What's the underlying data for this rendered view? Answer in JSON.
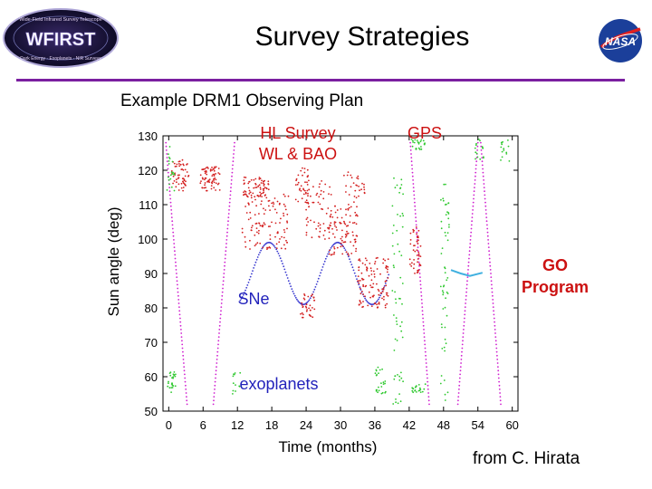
{
  "slide": {
    "title": "Survey Strategies",
    "subtitle": "Example DRM1 Observing Plan",
    "credit": "from C. Hirata",
    "logo_left_text": "WFIRST",
    "logo_left_ring": "Wide-Field Infrared Survey Telescope",
    "logo_left_footer": "Dark Energy · Exoplanets · NIR Surveys",
    "logo_right_text": "NASA"
  },
  "colors": {
    "rule": "#7a1fa0",
    "hl_survey": "#d42020",
    "sne": "#3a3ad0",
    "gps": "#2ec82e",
    "exoplanets": "#d020d0",
    "go_program": "#40b0e0",
    "red_label": "#cc1111",
    "sne_label": "#2222bb",
    "gps_label": "#cc1111",
    "exo_label": "#2222bb",
    "go_label": "#cc1111"
  },
  "chart_data": {
    "type": "scatter",
    "title": "",
    "xlabel": "Time (months)",
    "ylabel": "Sun angle (deg)",
    "xlim": [
      -1,
      61
    ],
    "ylim": [
      50,
      130
    ],
    "xticks": [
      0,
      6,
      12,
      18,
      24,
      30,
      36,
      42,
      48,
      54,
      60
    ],
    "yticks": [
      50,
      60,
      70,
      80,
      90,
      100,
      110,
      120,
      130
    ],
    "annotations": {
      "hl_survey": "HL Survey\nWL & BAO",
      "gps": "GPS",
      "go_program": "GO\nProgram",
      "sne": "SNe",
      "exoplanets": "exoplanets"
    },
    "series": [
      {
        "name": "SNe",
        "style": "sinusoid",
        "x_start": 12.5,
        "x_end": 38.5,
        "center": 90,
        "amplitude": 9,
        "period_months": 12,
        "peak_month": 17.5
      },
      {
        "name": "exoplanets",
        "style": "sawtooth",
        "segments": [
          [
            [
              -0.5,
              128
            ],
            [
              3.2,
              52
            ]
          ],
          [
            [
              7.8,
              52
            ],
            [
              11.5,
              128
            ]
          ],
          [
            [
              42.2,
              128
            ],
            [
              45.5,
              52
            ]
          ],
          [
            [
              50.5,
              52
            ],
            [
              54.0,
              128
            ]
          ],
          [
            [
              54.5,
              128
            ],
            [
              58.0,
              52
            ]
          ]
        ]
      },
      {
        "name": "GO Program",
        "style": "line",
        "points": [
          [
            49.3,
            91
          ],
          [
            51,
            90
          ],
          [
            52.6,
            89.3
          ],
          [
            54.8,
            90.2
          ]
        ]
      },
      {
        "name": "HL Survey",
        "style": "clusters",
        "clusters": [
          {
            "x": [
              0.5,
              3.5
            ],
            "y": [
              114,
              123
            ],
            "n": 55
          },
          {
            "x": [
              5.5,
              9.0
            ],
            "y": [
              114,
              121
            ],
            "n": 70
          },
          {
            "x": [
              13.0,
              17.5
            ],
            "y": [
              112,
              118
            ],
            "n": 70
          },
          {
            "x": [
              12.8,
              21.0
            ],
            "y": [
              97,
              113
            ],
            "n": 110
          },
          {
            "x": [
              22.0,
              24.5
            ],
            "y": [
              110,
              121
            ],
            "n": 35
          },
          {
            "x": [
              24.0,
              28.5
            ],
            "y": [
              100,
              118
            ],
            "n": 60
          },
          {
            "x": [
              28.0,
              33.0
            ],
            "y": [
              95,
              110
            ],
            "n": 90
          },
          {
            "x": [
              30.5,
              34.5
            ],
            "y": [
              110,
              120
            ],
            "n": 30
          },
          {
            "x": [
              33.0,
              38.5
            ],
            "y": [
              80,
              95
            ],
            "n": 110
          },
          {
            "x": [
              23.0,
              25.5
            ],
            "y": [
              77,
              84
            ],
            "n": 35
          },
          {
            "x": [
              42.0,
              44.0
            ],
            "y": [
              90,
              104
            ],
            "n": 45
          }
        ]
      },
      {
        "name": "GPS",
        "style": "clusters",
        "clusters": [
          {
            "x": [
              -0.2,
              1.2
            ],
            "y": [
              55,
              62
            ],
            "n": 25
          },
          {
            "x": [
              -0.3,
              1.0
            ],
            "y": [
              114,
              128
            ],
            "n": 20
          },
          {
            "x": [
              11.0,
              12.5
            ],
            "y": [
              55,
              62
            ],
            "n": 12
          },
          {
            "x": [
              36.0,
              38.0
            ],
            "y": [
              55,
              63
            ],
            "n": 25
          },
          {
            "x": [
              39.0,
              41.0
            ],
            "y": [
              52,
              118
            ],
            "n": 60
          },
          {
            "x": [
              42.3,
              44.8
            ],
            "y": [
              126,
              129
            ],
            "n": 25
          },
          {
            "x": [
              42.5,
              45.0
            ],
            "y": [
              55,
              58
            ],
            "n": 20
          },
          {
            "x": [
              47.5,
              49.0
            ],
            "y": [
              52,
              120
            ],
            "n": 55
          },
          {
            "x": [
              53.5,
              55.0
            ],
            "y": [
              122,
              129
            ],
            "n": 15
          },
          {
            "x": [
              58.0,
              59.5
            ],
            "y": [
              122,
              129
            ],
            "n": 15
          }
        ]
      }
    ]
  }
}
